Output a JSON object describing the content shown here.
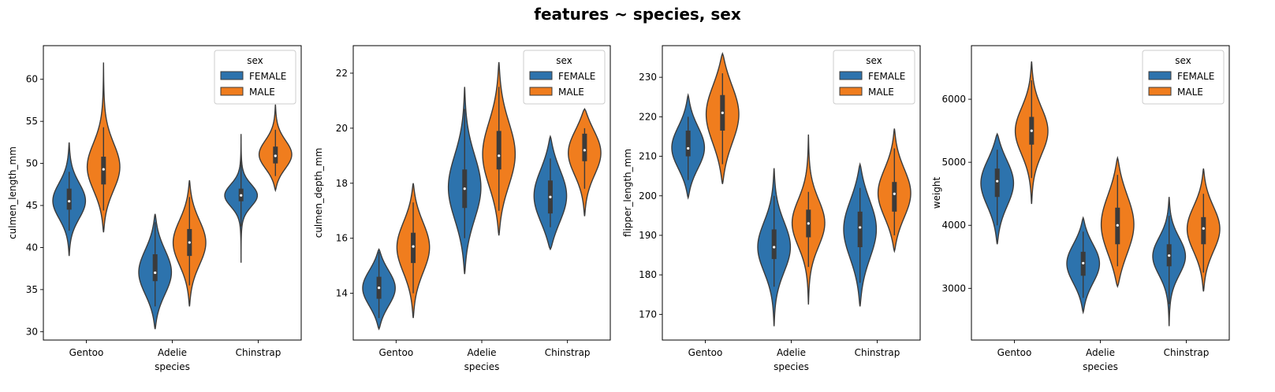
{
  "figure": {
    "title": "features ~ species, sex"
  },
  "colors": {
    "FEMALE": "#2d73ad",
    "MALE": "#f07d1e",
    "outline": "#3b3b3b",
    "box": "#3b3b3b"
  },
  "chart_data": [
    {
      "type": "violin",
      "xlabel": "species",
      "ylabel": "culmen_length_mm",
      "categories": [
        "Gentoo",
        "Adelie",
        "Chinstrap"
      ],
      "ylim": [
        29,
        64
      ],
      "yticks": [
        30,
        35,
        40,
        45,
        50,
        55,
        60
      ],
      "legend": {
        "title": "sex",
        "position": "top-right",
        "entries": [
          "FEMALE",
          "MALE"
        ]
      },
      "series": [
        {
          "name": "FEMALE",
          "stats": [
            {
              "category": "Gentoo",
              "min": 39,
              "q1": 44.5,
              "median": 45.5,
              "q3": 47,
              "max": 52.5,
              "wlo": 42,
              "whi": 49
            },
            {
              "category": "Adelie",
              "min": 30.3,
              "q1": 36,
              "median": 37,
              "q3": 39.2,
              "max": 44,
              "wlo": 33,
              "whi": 43
            },
            {
              "category": "Chinstrap",
              "min": 38.2,
              "q1": 45.5,
              "median": 46.2,
              "q3": 47,
              "max": 53.5,
              "wlo": 42.5,
              "whi": 51
            }
          ]
        },
        {
          "name": "MALE",
          "stats": [
            {
              "category": "Gentoo",
              "min": 41.8,
              "q1": 47.5,
              "median": 49.3,
              "q3": 50.8,
              "max": 62,
              "wlo": 44.4,
              "whi": 54.3
            },
            {
              "category": "Adelie",
              "min": 33,
              "q1": 39,
              "median": 40.6,
              "q3": 42.2,
              "max": 48,
              "wlo": 35.5,
              "whi": 46
            },
            {
              "category": "Chinstrap",
              "min": 46.8,
              "q1": 50,
              "median": 50.9,
              "q3": 52,
              "max": 57,
              "wlo": 48.5,
              "whi": 54
            }
          ]
        }
      ]
    },
    {
      "type": "violin",
      "xlabel": "species",
      "ylabel": "culmen_depth_mm",
      "categories": [
        "Gentoo",
        "Adelie",
        "Chinstrap"
      ],
      "ylim": [
        12.3,
        23
      ],
      "yticks": [
        14,
        16,
        18,
        20,
        22
      ],
      "legend": {
        "title": "sex",
        "position": "top-right",
        "entries": [
          "FEMALE",
          "MALE"
        ]
      },
      "series": [
        {
          "name": "FEMALE",
          "stats": [
            {
              "category": "Gentoo",
              "min": 12.7,
              "q1": 13.8,
              "median": 14.2,
              "q3": 14.6,
              "max": 15.6,
              "wlo": 13.1,
              "whi": 15.5
            },
            {
              "category": "Adelie",
              "min": 14.7,
              "q1": 17.1,
              "median": 17.8,
              "q3": 18.5,
              "max": 21.5,
              "wlo": 16,
              "whi": 20.7
            },
            {
              "category": "Chinstrap",
              "min": 15.6,
              "q1": 16.9,
              "median": 17.5,
              "q3": 18.1,
              "max": 19.7,
              "wlo": 16.4,
              "whi": 18.9
            }
          ]
        },
        {
          "name": "MALE",
          "stats": [
            {
              "category": "Gentoo",
              "min": 13.1,
              "q1": 15.1,
              "median": 15.7,
              "q3": 16.2,
              "max": 18,
              "wlo": 14,
              "whi": 17.3
            },
            {
              "category": "Adelie",
              "min": 16.1,
              "q1": 18.5,
              "median": 19,
              "q3": 19.9,
              "max": 22.4,
              "wlo": 17,
              "whi": 21.5
            },
            {
              "category": "Chinstrap",
              "min": 16.8,
              "q1": 18.8,
              "median": 19.2,
              "q3": 19.8,
              "max": 20.7,
              "wlo": 17.8,
              "whi": 20
            }
          ]
        }
      ]
    },
    {
      "type": "violin",
      "xlabel": "species",
      "ylabel": "flipper_length_mm",
      "categories": [
        "Gentoo",
        "Adelie",
        "Chinstrap"
      ],
      "ylim": [
        163.5,
        238
      ],
      "yticks": [
        170,
        180,
        190,
        200,
        210,
        220,
        230
      ],
      "legend": {
        "title": "sex",
        "position": "top-right",
        "entries": [
          "FEMALE",
          "MALE"
        ]
      },
      "series": [
        {
          "name": "FEMALE",
          "stats": [
            {
              "category": "Gentoo",
              "min": 199.5,
              "q1": 210,
              "median": 212,
              "q3": 216.5,
              "max": 225.5,
              "wlo": 204,
              "whi": 220
            },
            {
              "category": "Adelie",
              "min": 167,
              "q1": 184,
              "median": 187,
              "q3": 191.5,
              "max": 207,
              "wlo": 177,
              "whi": 200
            },
            {
              "category": "Chinstrap",
              "min": 172,
              "q1": 187,
              "median": 192,
              "q3": 196,
              "max": 208,
              "wlo": 178,
              "whi": 202
            }
          ]
        },
        {
          "name": "MALE",
          "stats": [
            {
              "category": "Gentoo",
              "min": 203,
              "q1": 216.5,
              "median": 221,
              "q3": 225.5,
              "max": 236,
              "wlo": 208,
              "whi": 231
            },
            {
              "category": "Adelie",
              "min": 172.5,
              "q1": 189.5,
              "median": 193,
              "q3": 196.5,
              "max": 215.5,
              "wlo": 182,
              "whi": 201
            },
            {
              "category": "Chinstrap",
              "min": 186,
              "q1": 196,
              "median": 200.5,
              "q3": 203.5,
              "max": 217,
              "wlo": 190,
              "whi": 212
            }
          ]
        }
      ]
    },
    {
      "type": "violin",
      "xlabel": "species",
      "ylabel": "weight",
      "categories": [
        "Gentoo",
        "Adelie",
        "Chinstrap"
      ],
      "ylim": [
        2180,
        6850
      ],
      "yticks": [
        3000,
        4000,
        5000,
        6000
      ],
      "legend": {
        "title": "sex",
        "position": "top-right",
        "entries": [
          "FEMALE",
          "MALE"
        ]
      },
      "series": [
        {
          "name": "FEMALE",
          "stats": [
            {
              "category": "Gentoo",
              "min": 3700,
              "q1": 4450,
              "median": 4700,
              "q3": 4900,
              "max": 5450,
              "wlo": 4000,
              "whi": 5200
            },
            {
              "category": "Adelie",
              "min": 2620,
              "q1": 3200,
              "median": 3400,
              "q3": 3580,
              "max": 4120,
              "wlo": 2850,
              "whi": 3900
            },
            {
              "category": "Chinstrap",
              "min": 2400,
              "q1": 3350,
              "median": 3520,
              "q3": 3700,
              "max": 4450,
              "wlo": 2750,
              "whi": 4150
            }
          ]
        },
        {
          "name": "MALE",
          "stats": [
            {
              "category": "Gentoo",
              "min": 4340,
              "q1": 5280,
              "median": 5500,
              "q3": 5720,
              "max": 6600,
              "wlo": 4750,
              "whi": 6300
            },
            {
              "category": "Adelie",
              "min": 3030,
              "q1": 3700,
              "median": 4000,
              "q3": 4280,
              "max": 5070,
              "wlo": 3350,
              "whi": 4800
            },
            {
              "category": "Chinstrap",
              "min": 2950,
              "q1": 3700,
              "median": 3950,
              "q3": 4130,
              "max": 4900,
              "wlo": 3250,
              "whi": 4500
            }
          ]
        }
      ]
    }
  ]
}
